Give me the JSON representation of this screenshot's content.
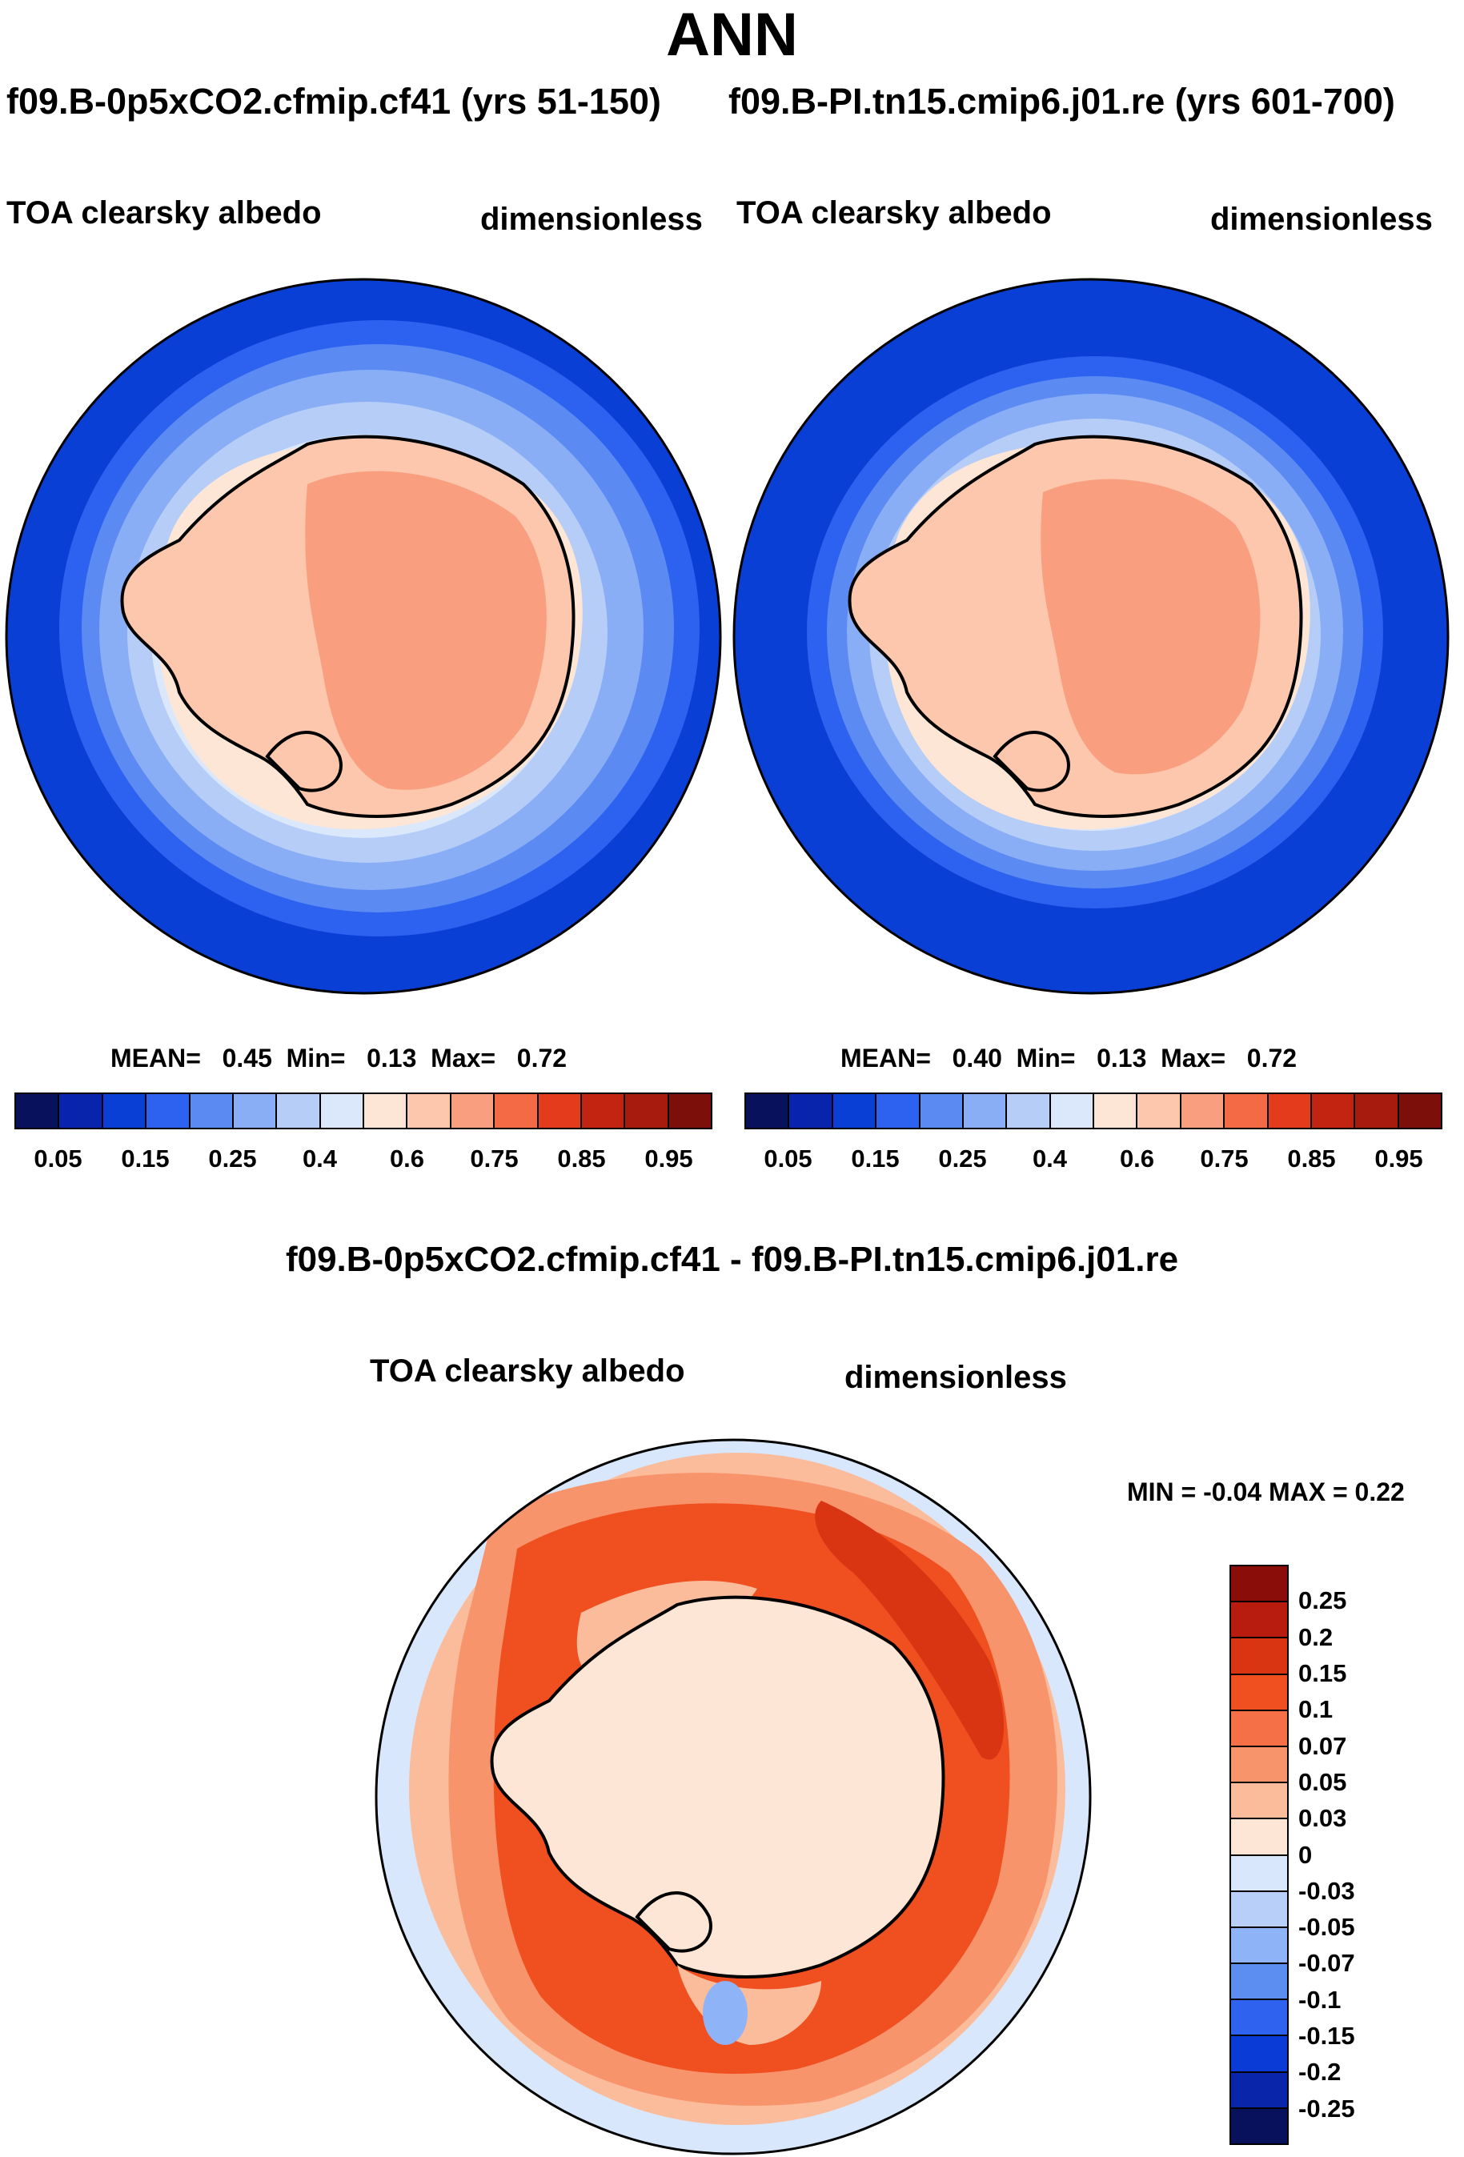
{
  "title": "ANN",
  "panels": [
    {
      "case": "f09.B-0p5xCO2.cfmip.cf41 (yrs 51-150)",
      "variable": "TOA clearsky albedo",
      "units": "dimensionless",
      "stats": {
        "mean_label": "MEAN=",
        "mean": "0.45",
        "min_label": "Min=",
        "min": "0.13",
        "max_label": "Max=",
        "max": "0.72"
      }
    },
    {
      "case": "f09.B-PI.tn15.cmip6.j01.re (yrs 601-700)",
      "variable": "TOA clearsky albedo",
      "units": "dimensionless",
      "stats": {
        "mean_label": "MEAN=",
        "mean": "0.40",
        "min_label": "Min=",
        "min": "0.13",
        "max_label": "Max=",
        "max": "0.72"
      }
    }
  ],
  "diff_panel": {
    "title": "f09.B-0p5xCO2.cfmip.cf41 - f09.B-PI.tn15.cmip6.j01.re",
    "variable": "TOA clearsky albedo",
    "units": "dimensionless",
    "stats": "MIN =  -0.04 MAX =   0.22"
  },
  "colorbar_abs": {
    "labels": [
      "0.05",
      "0.15",
      "0.25",
      "0.4",
      "0.6",
      "0.75",
      "0.85",
      "0.95"
    ],
    "colors": [
      "#07115c",
      "#0824ad",
      "#0a3fd6",
      "#2c62ef",
      "#5b8bf2",
      "#89aef5",
      "#b6cdf8",
      "#dbe8fb",
      "#fde6d6",
      "#fcc7ad",
      "#f99f7f",
      "#f46a44",
      "#e33b1c",
      "#c32311",
      "#a71b0e",
      "#7d0f0b"
    ]
  },
  "colorbar_diff": {
    "labels": [
      "0.25",
      "0.2",
      "0.15",
      "0.1",
      "0.07",
      "0.05",
      "0.03",
      "0",
      "-0.03",
      "-0.05",
      "-0.07",
      "-0.1",
      "-0.15",
      "-0.2",
      "-0.25"
    ],
    "colors": [
      "#8b0d0a",
      "#b81c0f",
      "#d93513",
      "#f04f20",
      "#f57046",
      "#f8946c",
      "#fbbc9c",
      "#fde6d6",
      "#d8e7fb",
      "#b7cff9",
      "#8eb3f6",
      "#5c8ef2",
      "#2f62ee",
      "#0b3bd6",
      "#0926ab",
      "#07115c"
    ]
  },
  "map_colors": {
    "ocean_far": "#0a3fd6",
    "ocean_mid": "#5b8bf2",
    "ocean_near": "#b6cdf8",
    "ice": "#dbe8fb",
    "coast": "#fde6d6",
    "land": "#fcc7ad",
    "interior": "#f99f7f"
  }
}
